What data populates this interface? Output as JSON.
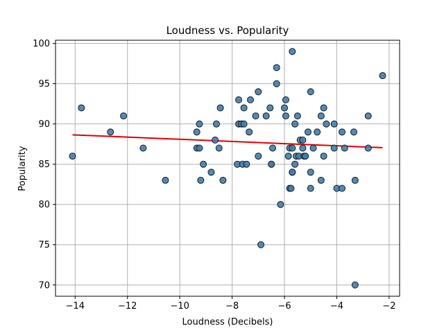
{
  "chart_data": {
    "type": "scatter",
    "title": "Loudness vs. Popularity",
    "xlabel": "Loudness (Decibels)",
    "ylabel": "Popularity",
    "xlim": [
      -14.75,
      -1.6
    ],
    "ylim": [
      68.6,
      100.4
    ],
    "x_ticks": [
      -14,
      -12,
      -10,
      -8,
      -6,
      -4,
      -2
    ],
    "x_tick_labels": [
      "−14",
      "−12",
      "−10",
      "−8",
      "−6",
      "−4",
      "−2"
    ],
    "y_ticks": [
      70,
      75,
      80,
      85,
      90,
      95,
      100
    ],
    "y_tick_labels": [
      "70",
      "75",
      "80",
      "85",
      "90",
      "95",
      "100"
    ],
    "grid": true,
    "colors": {
      "point_fill": "#3d7eb0",
      "point_edge": "#1a1a1a",
      "trend": "#dd0000",
      "grid": "#b0b0b0"
    },
    "points": [
      {
        "x": -14.1,
        "y": 86
      },
      {
        "x": -13.76,
        "y": 92
      },
      {
        "x": -12.65,
        "y": 89
      },
      {
        "x": -12.15,
        "y": 91
      },
      {
        "x": -11.4,
        "y": 87
      },
      {
        "x": -10.55,
        "y": 83
      },
      {
        "x": -9.35,
        "y": 89
      },
      {
        "x": -9.35,
        "y": 87
      },
      {
        "x": -9.25,
        "y": 90
      },
      {
        "x": -9.25,
        "y": 87
      },
      {
        "x": -9.2,
        "y": 83
      },
      {
        "x": -9.1,
        "y": 85
      },
      {
        "x": -8.8,
        "y": 84
      },
      {
        "x": -8.65,
        "y": 88
      },
      {
        "x": -8.6,
        "y": 90
      },
      {
        "x": -8.5,
        "y": 87
      },
      {
        "x": -8.45,
        "y": 92
      },
      {
        "x": -8.35,
        "y": 83
      },
      {
        "x": -7.8,
        "y": 85
      },
      {
        "x": -7.75,
        "y": 90
      },
      {
        "x": -7.75,
        "y": 93
      },
      {
        "x": -7.65,
        "y": 90
      },
      {
        "x": -7.6,
        "y": 85
      },
      {
        "x": -7.55,
        "y": 92
      },
      {
        "x": -7.55,
        "y": 90
      },
      {
        "x": -7.45,
        "y": 85
      },
      {
        "x": -7.35,
        "y": 89
      },
      {
        "x": -7.3,
        "y": 93
      },
      {
        "x": -7.1,
        "y": 91
      },
      {
        "x": -7.0,
        "y": 86
      },
      {
        "x": -7.0,
        "y": 94
      },
      {
        "x": -6.9,
        "y": 75
      },
      {
        "x": -6.7,
        "y": 91
      },
      {
        "x": -6.55,
        "y": 92
      },
      {
        "x": -6.5,
        "y": 85
      },
      {
        "x": -6.5,
        "y": 85
      },
      {
        "x": -6.45,
        "y": 87
      },
      {
        "x": -6.3,
        "y": 97
      },
      {
        "x": -6.3,
        "y": 95
      },
      {
        "x": -6.15,
        "y": 80
      },
      {
        "x": -6.0,
        "y": 92
      },
      {
        "x": -5.95,
        "y": 93
      },
      {
        "x": -5.95,
        "y": 91
      },
      {
        "x": -5.85,
        "y": 86
      },
      {
        "x": -5.8,
        "y": 87
      },
      {
        "x": -5.8,
        "y": 82
      },
      {
        "x": -5.75,
        "y": 82
      },
      {
        "x": -5.7,
        "y": 99
      },
      {
        "x": -5.7,
        "y": 84
      },
      {
        "x": -5.7,
        "y": 84
      },
      {
        "x": -5.7,
        "y": 87
      },
      {
        "x": -5.6,
        "y": 90
      },
      {
        "x": -5.6,
        "y": 85
      },
      {
        "x": -5.55,
        "y": 86
      },
      {
        "x": -5.5,
        "y": 91
      },
      {
        "x": -5.45,
        "y": 86
      },
      {
        "x": -5.4,
        "y": 88
      },
      {
        "x": -5.3,
        "y": 88
      },
      {
        "x": -5.3,
        "y": 87
      },
      {
        "x": -5.25,
        "y": 86
      },
      {
        "x": -5.2,
        "y": 86
      },
      {
        "x": -5.1,
        "y": 89
      },
      {
        "x": -5.0,
        "y": 94
      },
      {
        "x": -5.0,
        "y": 84
      },
      {
        "x": -5.0,
        "y": 82
      },
      {
        "x": -4.9,
        "y": 87
      },
      {
        "x": -4.75,
        "y": 89
      },
      {
        "x": -4.6,
        "y": 91
      },
      {
        "x": -4.6,
        "y": 83
      },
      {
        "x": -4.5,
        "y": 92
      },
      {
        "x": -4.5,
        "y": 86
      },
      {
        "x": -4.4,
        "y": 90
      },
      {
        "x": -4.1,
        "y": 90
      },
      {
        "x": -4.1,
        "y": 87
      },
      {
        "x": -4.0,
        "y": 82
      },
      {
        "x": -3.8,
        "y": 89
      },
      {
        "x": -3.8,
        "y": 82
      },
      {
        "x": -3.7,
        "y": 87
      },
      {
        "x": -3.35,
        "y": 89
      },
      {
        "x": -3.3,
        "y": 83
      },
      {
        "x": -3.3,
        "y": 70
      },
      {
        "x": -2.8,
        "y": 91
      },
      {
        "x": -2.8,
        "y": 87
      },
      {
        "x": -2.25,
        "y": 96
      }
    ],
    "trend_line": {
      "x": [
        -14.1,
        -2.25
      ],
      "y": [
        88.65,
        87.05
      ]
    }
  }
}
